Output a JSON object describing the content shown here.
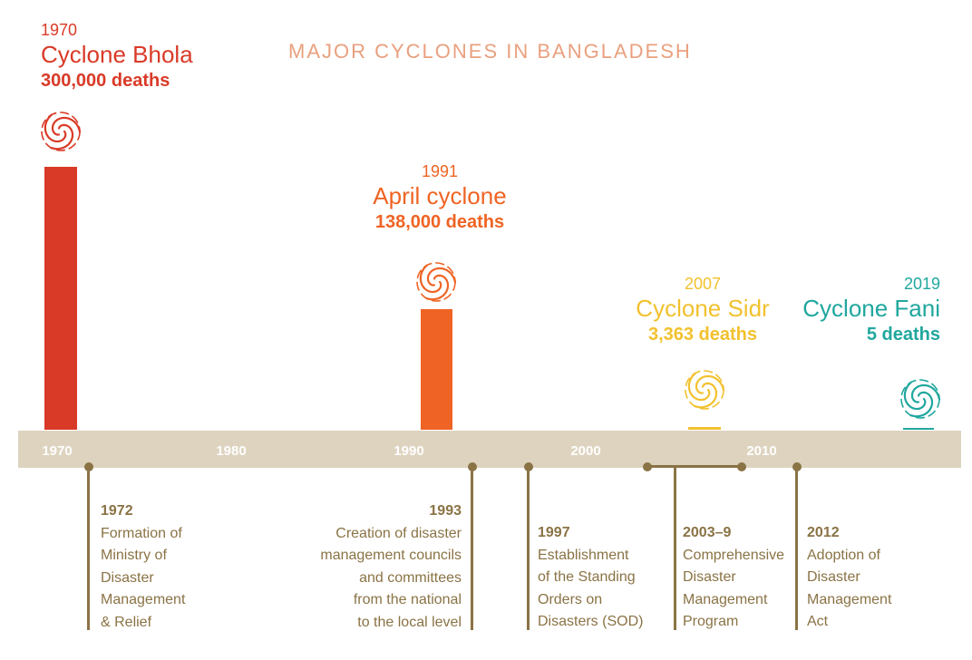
{
  "chart_data": {
    "type": "bar",
    "title": "MAJOR CYCLONES IN BANGLADESH",
    "x_ticks": [
      "1970",
      "1980",
      "1990",
      "2000",
      "2010"
    ],
    "xlim": [
      1970,
      2022
    ],
    "ylim": [
      0,
      300000
    ],
    "events": [
      {
        "year": 1970,
        "year_label": "1970",
        "name": "Cyclone Bhola",
        "deaths": 300000,
        "deaths_label": "300,000 deaths",
        "color": "#d93a27"
      },
      {
        "year": 1991,
        "year_label": "1991",
        "name": "April cyclone",
        "deaths": 138000,
        "deaths_label": "138,000 deaths",
        "color": "#ef6424"
      },
      {
        "year": 2007,
        "year_label": "2007",
        "name": "Cyclone Sidr",
        "deaths": 3363,
        "deaths_label": "3,363 deaths",
        "color": "#f2c12e"
      },
      {
        "year": 2019,
        "year_label": "2019",
        "name": "Cyclone Fani",
        "deaths": 5,
        "deaths_label": "5 deaths",
        "color": "#20a79e"
      }
    ],
    "milestones": [
      {
        "year_label": "1972",
        "lines": [
          "Formation of",
          "Ministry of",
          "Disaster",
          "Management",
          "& Relief"
        ]
      },
      {
        "year_label": "1993",
        "lines": [
          "Creation of disaster",
          "management councils",
          "and committees",
          "from the national",
          "to the local level"
        ]
      },
      {
        "year_label": "1997",
        "lines": [
          "Establishment",
          "of the Standing",
          "Orders on",
          "Disasters (SOD)"
        ]
      },
      {
        "year_label": "2003–9",
        "lines": [
          "Comprehensive",
          "Disaster",
          "Management",
          "Program"
        ]
      },
      {
        "year_label": "2012",
        "lines": [
          "Adoption of",
          "Disaster",
          "Management",
          "Act"
        ]
      }
    ],
    "colors": {
      "axis_band": "#ddd3bf",
      "milestone": "#8a7345",
      "title": "#e9a07f"
    }
  }
}
